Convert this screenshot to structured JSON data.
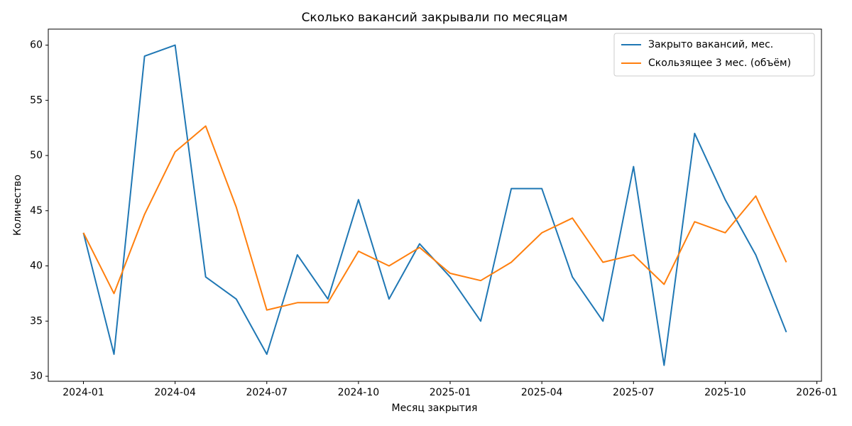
{
  "chart_data": {
    "type": "line",
    "title": "Сколько вакансий закрывали по месяцам",
    "xlabel": "Месяц закрытия",
    "ylabel": "Количество",
    "x": [
      "2024-01",
      "2024-02",
      "2024-03",
      "2024-04",
      "2024-05",
      "2024-06",
      "2024-07",
      "2024-08",
      "2024-09",
      "2024-10",
      "2024-11",
      "2024-12",
      "2025-01",
      "2025-02",
      "2025-03",
      "2025-04",
      "2025-05",
      "2025-06",
      "2025-07",
      "2025-08",
      "2025-09",
      "2025-10",
      "2025-11",
      "2025-12"
    ],
    "series": [
      {
        "name": "Закрыто вакансий, мес.",
        "color": "#1f77b4",
        "values": [
          43,
          32,
          59,
          60,
          39,
          37,
          32,
          41,
          37,
          46,
          37,
          42,
          39,
          35,
          47,
          47,
          39,
          35,
          49,
          31,
          52,
          46,
          41,
          34
        ]
      },
      {
        "name": "Скользящее 3 мес. (объём)",
        "color": "#ff7f0e",
        "values": [
          43,
          37.5,
          44.67,
          50.33,
          52.67,
          45.33,
          36,
          36.67,
          36.67,
          41.33,
          40,
          41.67,
          39.33,
          38.67,
          40.33,
          43,
          44.33,
          40.33,
          41,
          38.33,
          44,
          43,
          46.33,
          40.33
        ]
      }
    ],
    "xticks": [
      "2024-01",
      "2024-04",
      "2024-07",
      "2024-10",
      "2025-01",
      "2025-04",
      "2025-07",
      "2025-10",
      "2026-01"
    ],
    "ylim": [
      29.55,
      61.45
    ],
    "yticks": [
      30,
      35,
      40,
      45,
      50,
      55,
      60
    ],
    "legend": "upper right"
  }
}
